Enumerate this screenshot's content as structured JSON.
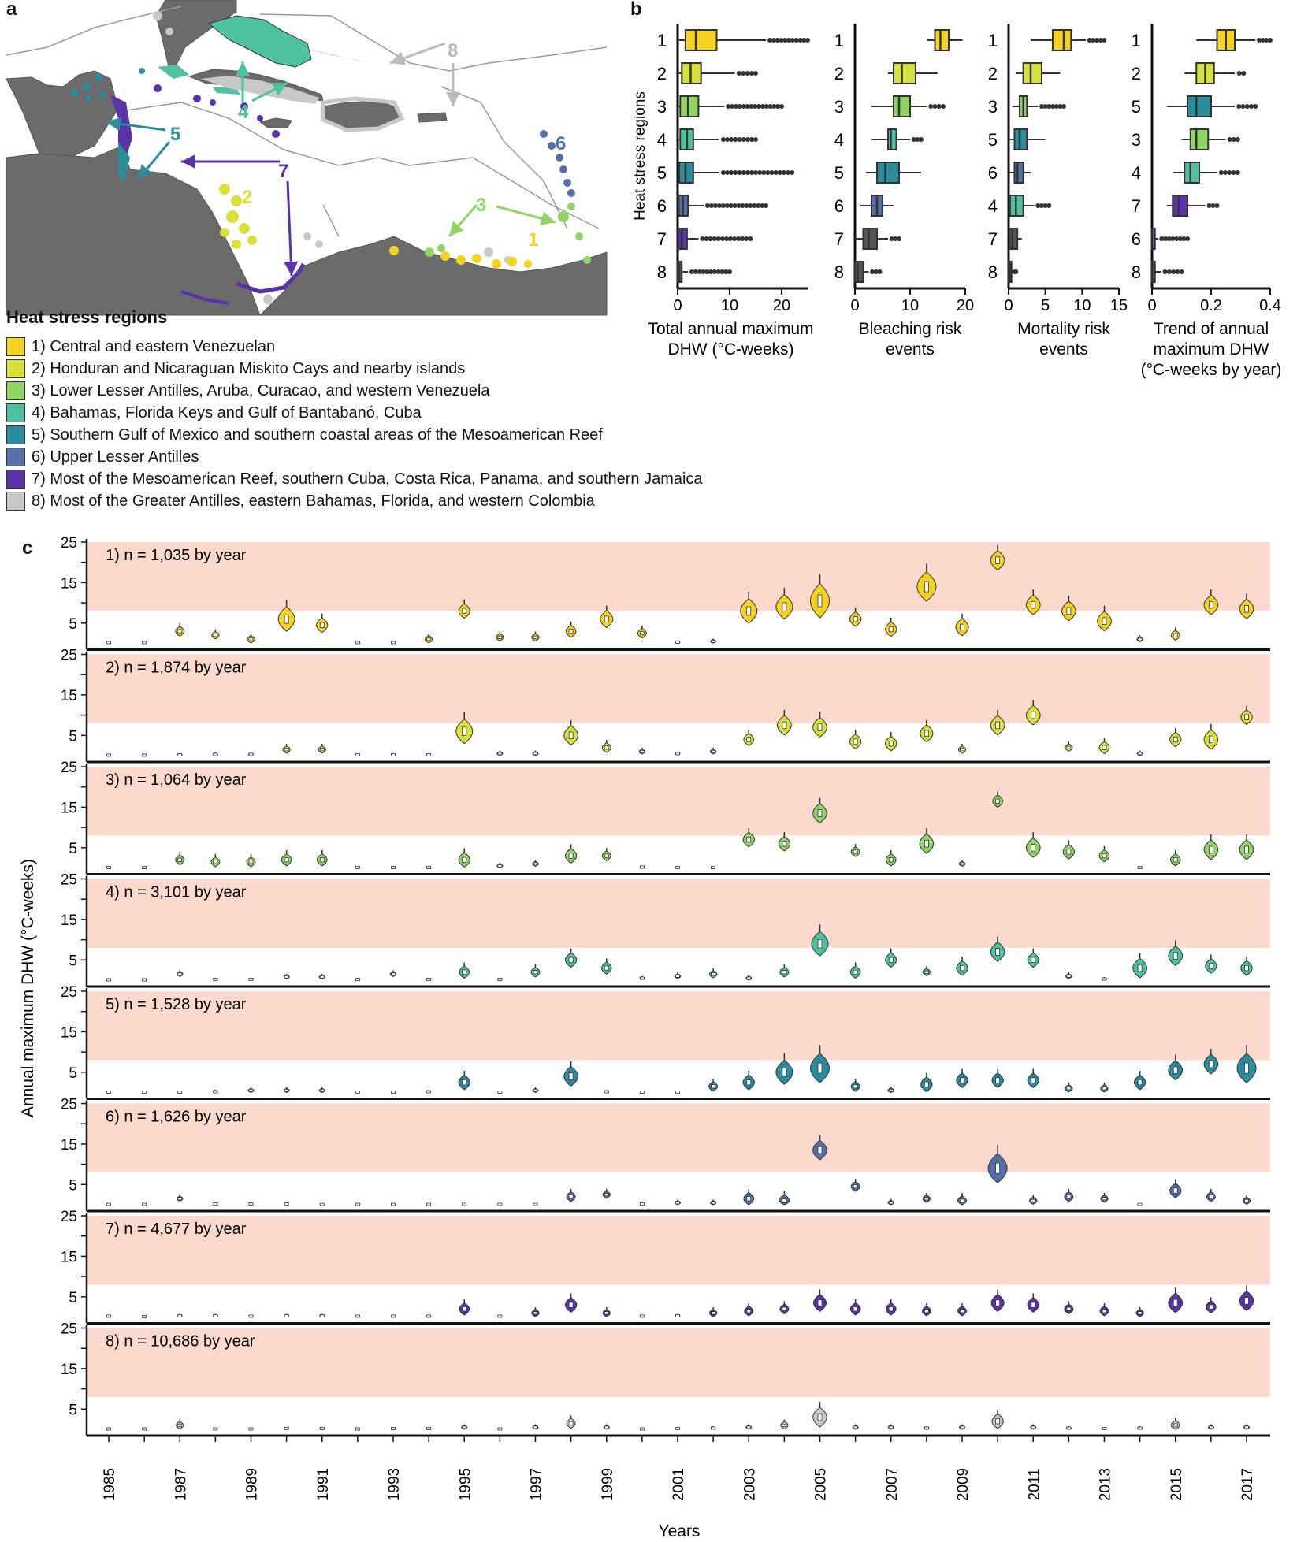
{
  "panel_labels": {
    "a": "a",
    "b": "b",
    "c": "c"
  },
  "map": {
    "labels": [
      "1",
      "2",
      "3",
      "4",
      "5",
      "6",
      "7",
      "8"
    ]
  },
  "legend": {
    "title": "Heat stress regions",
    "items": [
      {
        "label": "1) Central and eastern Venezuelan",
        "color": "#F5D21F"
      },
      {
        "label": "2) Honduran and Nicaraguan Miskito Cays and nearby islands",
        "color": "#D9E03A"
      },
      {
        "label": "3) Lower Lesser Antilles, Aruba, Curacao, and western Venezuela",
        "color": "#8FD464"
      },
      {
        "label": "4) Bahamas, Florida Keys and Gulf of Bantabanó, Cuba",
        "color": "#4EC2A0"
      },
      {
        "label": "5) Southern Gulf of Mexico and southern coastal areas of the Mesoamerican Reef",
        "color": "#2A8C9C"
      },
      {
        "label": "6) Upper Lesser Antilles",
        "color": "#5570A8"
      },
      {
        "label": "7) Most of the Mesoamerican Reef, southern Cuba, Costa Rica, Panama, and southern Jamaica",
        "color": "#5B33A8"
      },
      {
        "label": "8) Most of the Greater Antilles, eastern Bahamas, Florida, and western Colombia",
        "color": "#C8C8C8"
      }
    ]
  },
  "chart_data": [
    {
      "id": "b1",
      "type": "boxplot",
      "ylabel": "Heat stress regions",
      "xlabel_lines": [
        "Total annual maximum",
        "DHW (°C-weeks)"
      ],
      "xlim": [
        0,
        25
      ],
      "xticks": [
        0,
        10,
        20
      ],
      "categories": [
        "1",
        "2",
        "3",
        "4",
        "5",
        "6",
        "7",
        "8"
      ],
      "colors": [
        "#F5D21F",
        "#D9E03A",
        "#8FD464",
        "#4EC2A0",
        "#2A8C9C",
        "#5570A8",
        "#5B33A8",
        "#555555"
      ],
      "boxes": [
        {
          "min": 0,
          "q1": 1.5,
          "median": 3.5,
          "q3": 7.5,
          "max": 17,
          "out_to": 25
        },
        {
          "min": 0,
          "q1": 0.8,
          "median": 2.5,
          "q3": 4.5,
          "max": 11,
          "out_to": 15
        },
        {
          "min": 0,
          "q1": 0.5,
          "median": 2,
          "q3": 4,
          "max": 9,
          "out_to": 20
        },
        {
          "min": 0,
          "q1": 0.5,
          "median": 1.8,
          "q3": 3,
          "max": 8,
          "out_to": 15
        },
        {
          "min": 0,
          "q1": 0.3,
          "median": 1.5,
          "q3": 3,
          "max": 8,
          "out_to": 22
        },
        {
          "min": 0,
          "q1": 0.2,
          "median": 1,
          "q3": 2,
          "max": 5,
          "out_to": 17
        },
        {
          "min": 0,
          "q1": 0.1,
          "median": 0.8,
          "q3": 1.8,
          "max": 4,
          "out_to": 14
        },
        {
          "min": 0,
          "q1": 0,
          "median": 0.3,
          "q3": 0.8,
          "max": 2,
          "out_to": 10
        }
      ]
    },
    {
      "id": "b2",
      "type": "boxplot",
      "xlabel_lines": [
        "Bleaching risk",
        "events"
      ],
      "xlim": [
        0,
        20
      ],
      "xticks": [
        0,
        10,
        20
      ],
      "categories": [
        "1",
        "2",
        "3",
        "4",
        "5",
        "6",
        "7",
        "8"
      ],
      "colors": [
        "#F5D21F",
        "#D9E03A",
        "#8FD464",
        "#4EC2A0",
        "#2A8C9C",
        "#5570A8",
        "#555555",
        "#555555"
      ],
      "boxes": [
        {
          "min": 13,
          "q1": 14.5,
          "median": 15.5,
          "q3": 17,
          "max": 19.5,
          "out_to": null
        },
        {
          "min": 6,
          "q1": 7,
          "median": 8.5,
          "q3": 11,
          "max": 15,
          "out_to": null
        },
        {
          "min": 3,
          "q1": 7,
          "median": 8,
          "q3": 10,
          "max": 13,
          "out_to": 16
        },
        {
          "min": 3,
          "q1": 6,
          "median": 6.5,
          "q3": 7.5,
          "max": 10,
          "out_to": 12
        },
        {
          "min": 2,
          "q1": 4,
          "median": 5.5,
          "q3": 8,
          "max": 12,
          "out_to": null
        },
        {
          "min": 1,
          "q1": 3,
          "median": 4,
          "q3": 5,
          "max": 7,
          "out_to": null
        },
        {
          "min": 0,
          "q1": 1.5,
          "median": 2.5,
          "q3": 4,
          "max": 6,
          "out_to": 8
        },
        {
          "min": 0,
          "q1": 0,
          "median": 0.5,
          "q3": 1.5,
          "max": 2.5,
          "out_to": 4.5
        }
      ]
    },
    {
      "id": "b3",
      "type": "boxplot",
      "xlabel_lines": [
        "Mortality risk",
        "events"
      ],
      "xlim": [
        0,
        15
      ],
      "xticks": [
        0,
        5,
        10,
        15
      ],
      "categories": [
        "1",
        "2",
        "3",
        "5",
        "6",
        "4",
        "7",
        "8"
      ],
      "colors": [
        "#F5D21F",
        "#D9E03A",
        "#8FD464",
        "#2A8C9C",
        "#5570A8",
        "#4EC2A0",
        "#555555",
        "#555555"
      ],
      "boxes": [
        {
          "min": 3,
          "q1": 6,
          "median": 7.5,
          "q3": 8.5,
          "max": 10.5,
          "out_to": 13
        },
        {
          "min": 1,
          "q1": 2,
          "median": 3,
          "q3": 4.5,
          "max": 7,
          "out_to": null
        },
        {
          "min": 0.5,
          "q1": 1.5,
          "median": 2,
          "q3": 2.5,
          "max": 4,
          "out_to": 7.5
        },
        {
          "min": 0,
          "q1": 0.8,
          "median": 1.5,
          "q3": 2.5,
          "max": 5,
          "out_to": null
        },
        {
          "min": 0,
          "q1": 0.8,
          "median": 1.2,
          "q3": 2,
          "max": 3,
          "out_to": null
        },
        {
          "min": 0,
          "q1": 0.2,
          "median": 1,
          "q3": 2,
          "max": 3.5,
          "out_to": 5.5
        },
        {
          "min": 0,
          "q1": 0.1,
          "median": 0.5,
          "q3": 1.2,
          "max": 1.8,
          "out_to": null
        },
        {
          "min": 0,
          "q1": 0,
          "median": 0.2,
          "q3": 0.4,
          "max": 0.6,
          "out_to": 1
        }
      ]
    },
    {
      "id": "b4",
      "type": "boxplot",
      "xlabel_lines": [
        "Trend of annual",
        "maximum  DHW",
        "(°C-weeks by year)"
      ],
      "xlim": [
        0,
        0.4
      ],
      "xticks": [
        0,
        0.2,
        0.4
      ],
      "categories": [
        "1",
        "2",
        "5",
        "3",
        "4",
        "7",
        "6",
        "8"
      ],
      "colors": [
        "#F5D21F",
        "#D9E03A",
        "#2A8C9C",
        "#8FD464",
        "#4EC2A0",
        "#5B33A8",
        "#5570A8",
        "#555555"
      ],
      "boxes": [
        {
          "min": 0.15,
          "q1": 0.22,
          "median": 0.25,
          "q3": 0.28,
          "max": 0.35,
          "out_to": 0.4
        },
        {
          "min": 0.11,
          "q1": 0.15,
          "median": 0.18,
          "q3": 0.21,
          "max": 0.28,
          "out_to": 0.31
        },
        {
          "min": 0.05,
          "q1": 0.12,
          "median": 0.15,
          "q3": 0.2,
          "max": 0.28,
          "out_to": 0.35
        },
        {
          "min": 0.1,
          "q1": 0.13,
          "median": 0.15,
          "q3": 0.19,
          "max": 0.25,
          "out_to": 0.29
        },
        {
          "min": 0.07,
          "q1": 0.11,
          "median": 0.13,
          "q3": 0.16,
          "max": 0.22,
          "out_to": 0.29
        },
        {
          "min": 0.05,
          "q1": 0.07,
          "median": 0.09,
          "q3": 0.12,
          "max": 0.18,
          "out_to": 0.22
        },
        {
          "min": 0,
          "q1": 0,
          "median": 0,
          "q3": 0.01,
          "max": 0.02,
          "out_to": 0.12
        },
        {
          "min": 0,
          "q1": 0,
          "median": 0,
          "q3": 0.01,
          "max": 0.03,
          "out_to": 0.1
        }
      ]
    },
    {
      "id": "c",
      "type": "violin",
      "ylabel": "Annual maximum DHW (°C-weeks)",
      "xlabel": "Years",
      "ylim": [
        0,
        25
      ],
      "yticks": [
        5,
        15,
        25
      ],
      "bleaching_threshold": 8,
      "years": [
        1985,
        1986,
        1987,
        1988,
        1989,
        1990,
        1991,
        1992,
        1993,
        1994,
        1995,
        1996,
        1997,
        1998,
        1999,
        2000,
        2001,
        2002,
        2003,
        2004,
        2005,
        2006,
        2007,
        2008,
        2009,
        2010,
        2011,
        2012,
        2013,
        2014,
        2015,
        2016,
        2017
      ],
      "xtick_labels": [
        "1985",
        "1987",
        "1989",
        "1991",
        "1993",
        "1995",
        "1997",
        "1999",
        "2001",
        "2003",
        "2005",
        "2007",
        "2009",
        "2011",
        "2013",
        "2015",
        "2017"
      ],
      "panels": [
        {
          "title": "1) n = 1,035 by year",
          "color": "#F5D21F",
          "medians": [
            0.2,
            0.2,
            3,
            2,
            1,
            6,
            4.5,
            0.2,
            0.2,
            1,
            8,
            1.5,
            1.5,
            3,
            6,
            2.5,
            0.3,
            0.5,
            8,
            9,
            10.5,
            6,
            3.5,
            14,
            4,
            20.5,
            9.5,
            8,
            5.5,
            1,
            2,
            9.5,
            8.5
          ],
          "spreads": [
            0.3,
            0.3,
            2,
            1.5,
            1.5,
            5,
            3,
            0.3,
            0.3,
            1.5,
            3,
            1.5,
            1.5,
            2.5,
            3.5,
            2,
            0.5,
            0.7,
            5,
            5,
            7,
            3,
            3,
            6,
            3.5,
            4,
            4,
            4,
            4,
            1,
            2,
            4,
            4
          ]
        },
        {
          "title": "2) n = 1,874 by year",
          "color": "#D9E03A",
          "medians": [
            0.1,
            0.1,
            0.2,
            0.3,
            0.3,
            1.5,
            1.5,
            0.2,
            0.2,
            0.2,
            6,
            0.5,
            0.5,
            5,
            2,
            1,
            0.5,
            1,
            4,
            7.5,
            7,
            3.5,
            3,
            5.5,
            1.5,
            7.5,
            10,
            2,
            2,
            0.5,
            4,
            4,
            9.5
          ],
          "spreads": [
            0.3,
            0.2,
            0.5,
            0.5,
            0.5,
            1.5,
            1.5,
            0.3,
            0.3,
            0.3,
            5,
            0.8,
            0.8,
            4,
            2,
            1,
            0.5,
            1,
            2.5,
            4,
            4,
            3,
            3,
            3.5,
            1.5,
            4,
            4,
            1.5,
            2.5,
            0.8,
            3,
            4,
            3
          ]
        },
        {
          "title": "3) n = 1,064 by year",
          "color": "#8FD464",
          "medians": [
            0.1,
            0.1,
            2,
            1.5,
            1.5,
            2,
            2,
            0.1,
            0.1,
            0.1,
            2,
            0.5,
            1,
            3,
            3,
            0.2,
            0.1,
            0.1,
            7,
            6,
            13.5,
            4,
            2,
            6,
            1,
            16.5,
            5,
            4,
            3,
            0.1,
            2,
            4.5,
            4.5
          ],
          "spreads": [
            0.2,
            0.2,
            2,
            2,
            2,
            2.5,
            2.5,
            0.2,
            0.2,
            0.2,
            3,
            0.8,
            1,
            3,
            2,
            0.3,
            0.2,
            0.2,
            3,
            3,
            4,
            2,
            2.5,
            4,
            1,
            2.5,
            4,
            3,
            2.5,
            0.2,
            2.5,
            4,
            4
          ]
        },
        {
          "title": "4) n = 3,101 by year",
          "color": "#4EC2A0",
          "medians": [
            0.1,
            0.1,
            1.5,
            0.2,
            0.2,
            0.8,
            0.8,
            0.2,
            1.5,
            0.2,
            2,
            0.2,
            2,
            5,
            3,
            0.5,
            1,
            1.5,
            0.5,
            2,
            9,
            2,
            5,
            2,
            3,
            7,
            5,
            1,
            0.3,
            3,
            6,
            3.5,
            3
          ],
          "spreads": [
            0.3,
            0.2,
            1,
            0.3,
            0.3,
            0.8,
            0.8,
            0.3,
            1,
            0.3,
            2.5,
            0.3,
            2,
            3,
            2.5,
            0.5,
            1,
            1.5,
            0.8,
            2,
            5,
            2.5,
            3,
            1.5,
            3,
            4,
            3,
            1,
            0.5,
            4,
            4,
            3,
            3
          ]
        },
        {
          "title": "5) n = 1,528 by year",
          "color": "#2A8C9C",
          "medians": [
            0.1,
            0.1,
            0.1,
            0.2,
            0.5,
            0.5,
            0.5,
            0.1,
            0.1,
            0.2,
            2.5,
            0.1,
            0.5,
            4,
            0.2,
            0.1,
            0.1,
            1.5,
            2.5,
            5,
            6,
            1.5,
            0.5,
            2,
            3,
            3,
            3,
            1,
            1,
            2.5,
            5.5,
            7,
            6
          ],
          "spreads": [
            0.2,
            0.2,
            0.2,
            0.5,
            0.8,
            0.8,
            0.8,
            0.2,
            0.2,
            0.3,
            3,
            0.2,
            0.8,
            4,
            0.3,
            0.2,
            0.2,
            2,
            3,
            5,
            6,
            2,
            1,
            3,
            3,
            3,
            3,
            1.5,
            1.5,
            3,
            4,
            4,
            6
          ]
        },
        {
          "title": "6) n = 1,626 by year",
          "color": "#5570A8",
          "medians": [
            0.1,
            0.1,
            1.5,
            0.2,
            0.2,
            0.2,
            0.1,
            0.1,
            0.1,
            0.1,
            0.1,
            0.1,
            0.1,
            2,
            2.5,
            0.2,
            0.5,
            0.5,
            1.5,
            1,
            13.5,
            4.5,
            0.5,
            1.5,
            1,
            9,
            1,
            2,
            1.5,
            0.1,
            3.5,
            2,
            1
          ],
          "spreads": [
            0.2,
            0.2,
            1,
            0.3,
            0.3,
            0.3,
            0.2,
            0.2,
            0.2,
            0.2,
            0.2,
            0.2,
            0.2,
            2,
            1.5,
            0.3,
            0.8,
            0.8,
            2.5,
            2.5,
            4,
            2,
            1,
            1.5,
            2,
            6,
            1.5,
            2,
            1.5,
            0.2,
            3,
            2,
            1.5
          ]
        },
        {
          "title": "7) n = 4,677 by year",
          "color": "#5B33A8",
          "medians": [
            0.2,
            0.1,
            0.3,
            0.3,
            0.2,
            0.3,
            0.3,
            0.2,
            0.2,
            0.2,
            2,
            0.2,
            1,
            3,
            1,
            0.2,
            0.3,
            1,
            1.5,
            2,
            3.5,
            2,
            2,
            1.5,
            1.5,
            3.5,
            3,
            2,
            1.5,
            1,
            3.5,
            2.5,
            4
          ],
          "spreads": [
            0.3,
            0.2,
            0.5,
            0.5,
            0.3,
            0.5,
            0.5,
            0.3,
            0.3,
            0.3,
            2.5,
            0.3,
            1.5,
            3,
            1.5,
            0.3,
            0.5,
            1.5,
            2,
            2,
            3.5,
            2.5,
            2.5,
            2,
            2,
            3.5,
            3,
            2,
            2,
            1.5,
            4,
            2.5,
            4
          ]
        },
        {
          "title": "8) n = 10,686 by year",
          "color": "#C8C8C8",
          "medians": [
            0.1,
            0.1,
            1,
            0.1,
            0.1,
            0.2,
            0.2,
            0.1,
            0.2,
            0.2,
            0.5,
            0.1,
            0.5,
            1.5,
            0.5,
            0.1,
            0.2,
            0.3,
            0.5,
            1,
            3,
            0.5,
            0.5,
            0.3,
            0.5,
            2,
            0.5,
            0.3,
            0.2,
            0.3,
            1,
            0.5,
            0.5
          ],
          "spreads": [
            0.2,
            0.2,
            1.5,
            0.2,
            0.2,
            0.3,
            0.3,
            0.2,
            0.3,
            0.3,
            0.8,
            0.2,
            0.8,
            2,
            0.8,
            0.2,
            0.3,
            0.5,
            0.8,
            1.5,
            4,
            0.8,
            0.8,
            0.5,
            0.8,
            3,
            0.8,
            0.5,
            0.3,
            0.5,
            2,
            0.8,
            0.8
          ]
        }
      ]
    }
  ]
}
